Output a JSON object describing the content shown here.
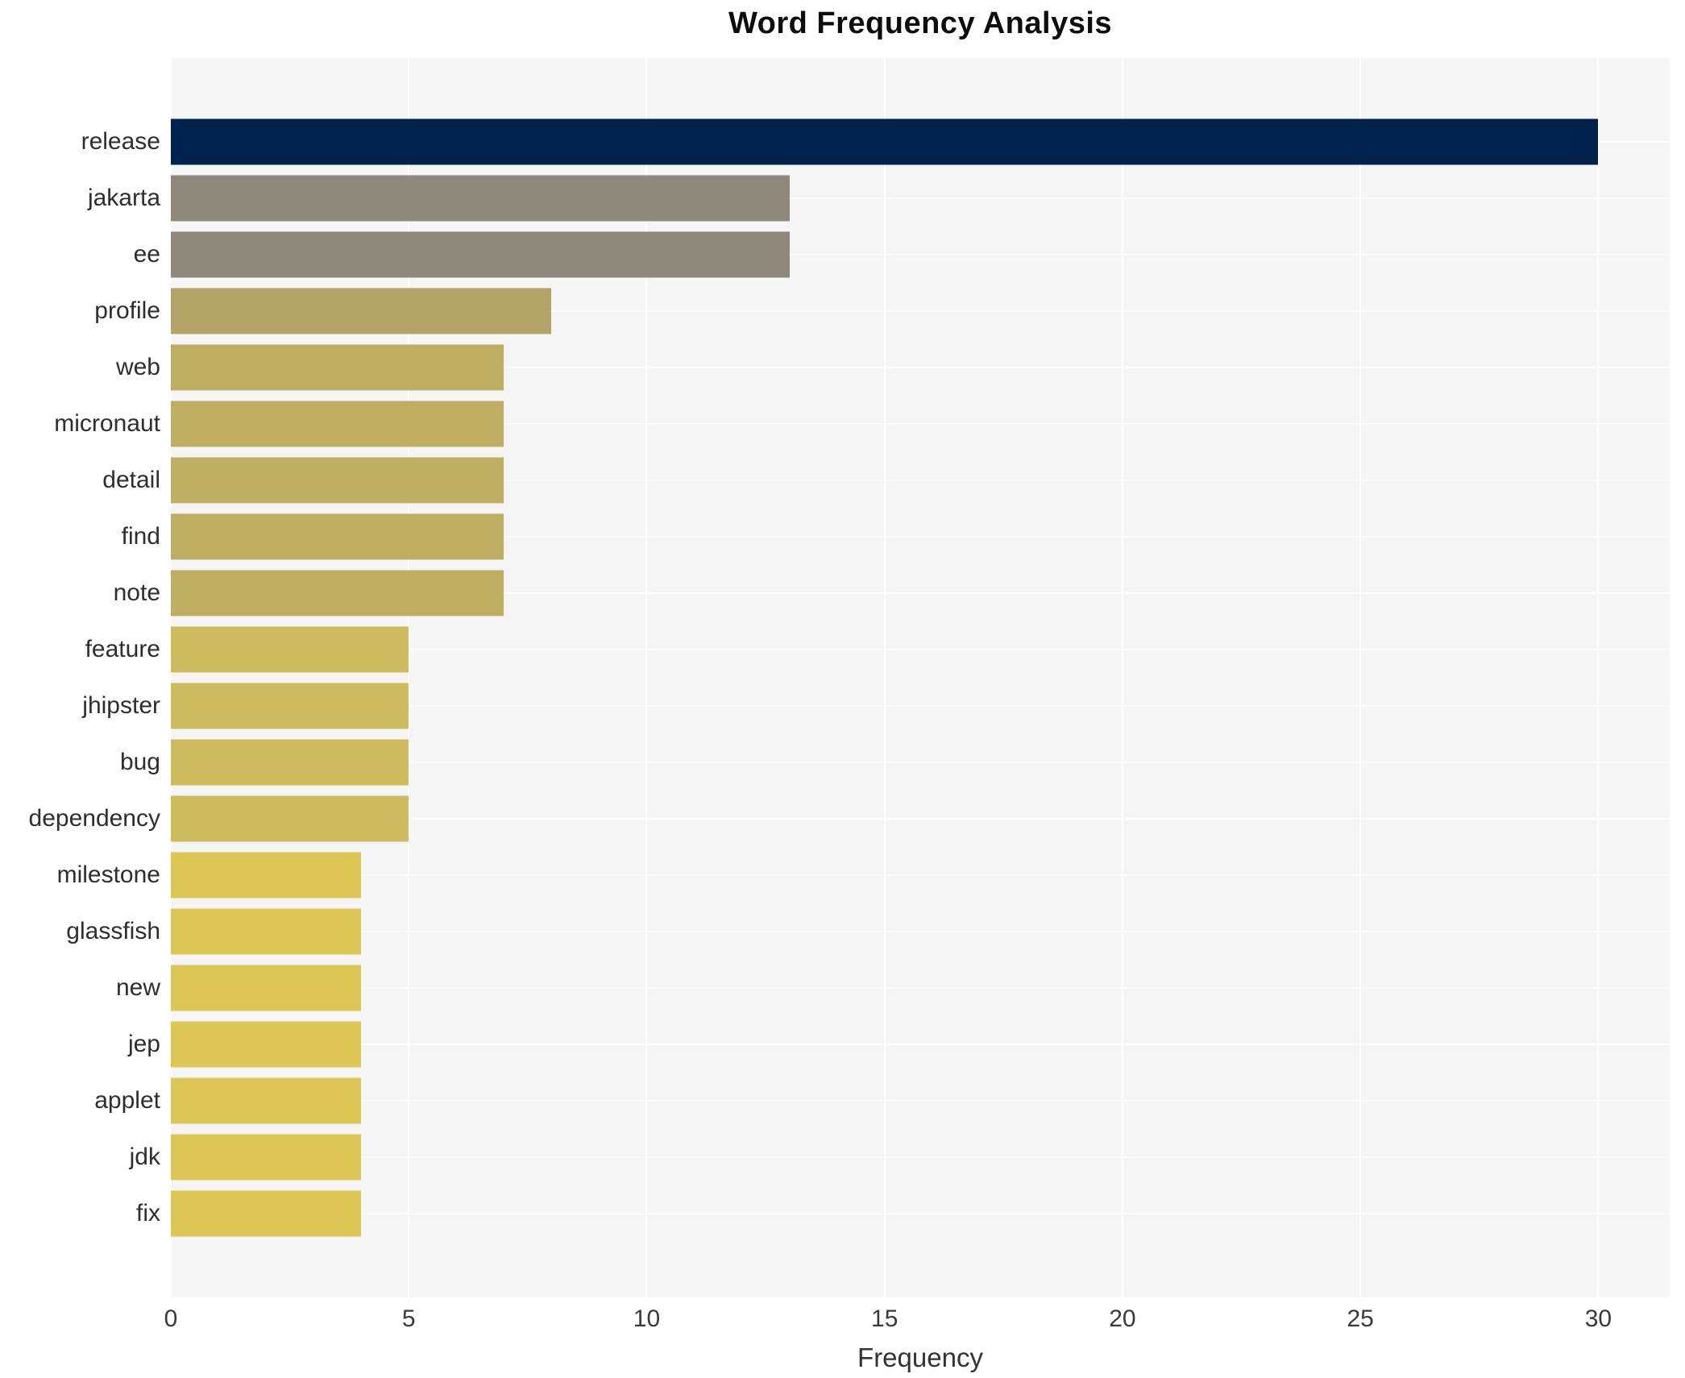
{
  "title": "Word Frequency Analysis",
  "chart_data": {
    "type": "bar",
    "orientation": "horizontal",
    "title": "Word Frequency Analysis",
    "xlabel": "Frequency",
    "ylabel": "",
    "categories": [
      "release",
      "jakarta",
      "ee",
      "profile",
      "web",
      "micronaut",
      "detail",
      "find",
      "note",
      "feature",
      "jhipster",
      "bug",
      "dependency",
      "milestone",
      "glassfish",
      "new",
      "jep",
      "applet",
      "jdk",
      "fix"
    ],
    "values": [
      30,
      13,
      13,
      8,
      7,
      7,
      7,
      7,
      7,
      5,
      5,
      5,
      5,
      4,
      4,
      4,
      4,
      4,
      4,
      4
    ],
    "bar_colors": [
      "#00234e",
      "#8e897a",
      "#8e897a",
      "#b2a366",
      "#bfae62",
      "#bfae62",
      "#bfae62",
      "#bfae62",
      "#bfae62",
      "#cdbc5e",
      "#cdbc5e",
      "#cdbc5e",
      "#cdbc5e",
      "#dbc656",
      "#dbc656",
      "#dbc656",
      "#dbc656",
      "#dbc656",
      "#dbc656",
      "#dbc656"
    ],
    "xticks": [
      0,
      5,
      10,
      15,
      20,
      25,
      30
    ],
    "xlim": [
      0,
      31.5
    ],
    "grid": true,
    "legend": "none",
    "plot_bg": "#f5f5f6",
    "grid_color": "#ffffff",
    "accent_color": "#00234e"
  }
}
